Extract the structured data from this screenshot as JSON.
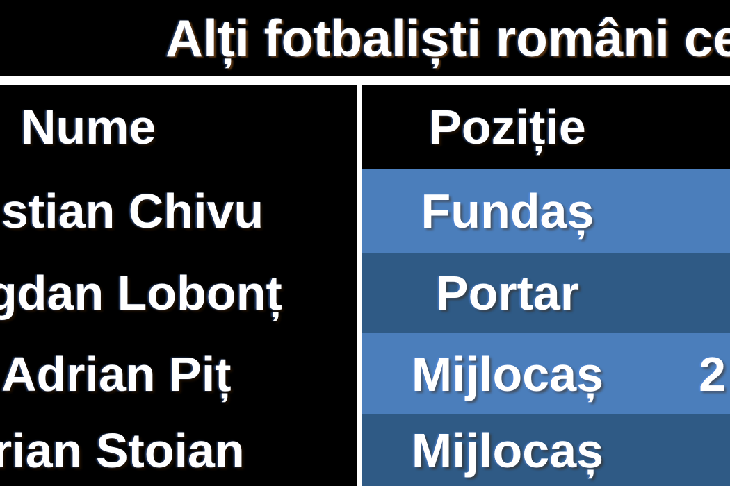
{
  "title": "Alți fotbaliști români ce",
  "table": {
    "headers": {
      "name": "Nume",
      "position": "Poziție"
    },
    "rows": [
      {
        "name": "stian Chivu",
        "position": "Fundaș",
        "extra": ""
      },
      {
        "name": "gdan Lobonț",
        "position": "Portar",
        "extra": ""
      },
      {
        "name": "Adrian Piț",
        "position": "Mijlocaș",
        "extra": "2"
      },
      {
        "name": "rian Stoian",
        "position": "Mijlocaș",
        "extra": ""
      }
    ]
  },
  "colors": {
    "background": "#000000",
    "header_bg": "#000000",
    "row_light_blue": "#4B7EBB",
    "row_dark_blue": "#2F5A85",
    "divider_white": "#FFFFFF",
    "text": "#FFFFFF"
  },
  "chart_data": {
    "type": "table",
    "title": "Alți fotbaliști români ce",
    "columns": [
      "Nume",
      "Poziție"
    ],
    "rows": [
      [
        "stian Chivu",
        "Fundaș"
      ],
      [
        "gdan Lobonț",
        "Portar"
      ],
      [
        "Adrian Piț",
        "Mijlocaș"
      ],
      [
        "rian Stoian",
        "Mijlocaș"
      ]
    ],
    "partial_third_column_values": [
      "",
      "",
      "2",
      ""
    ],
    "layout_hints": {
      "banded_rows": true,
      "left_column_background": "black",
      "band_colors": [
        "#4B7EBB",
        "#2F5A85"
      ],
      "cropped_edges": [
        "left",
        "right",
        "bottom"
      ]
    }
  }
}
